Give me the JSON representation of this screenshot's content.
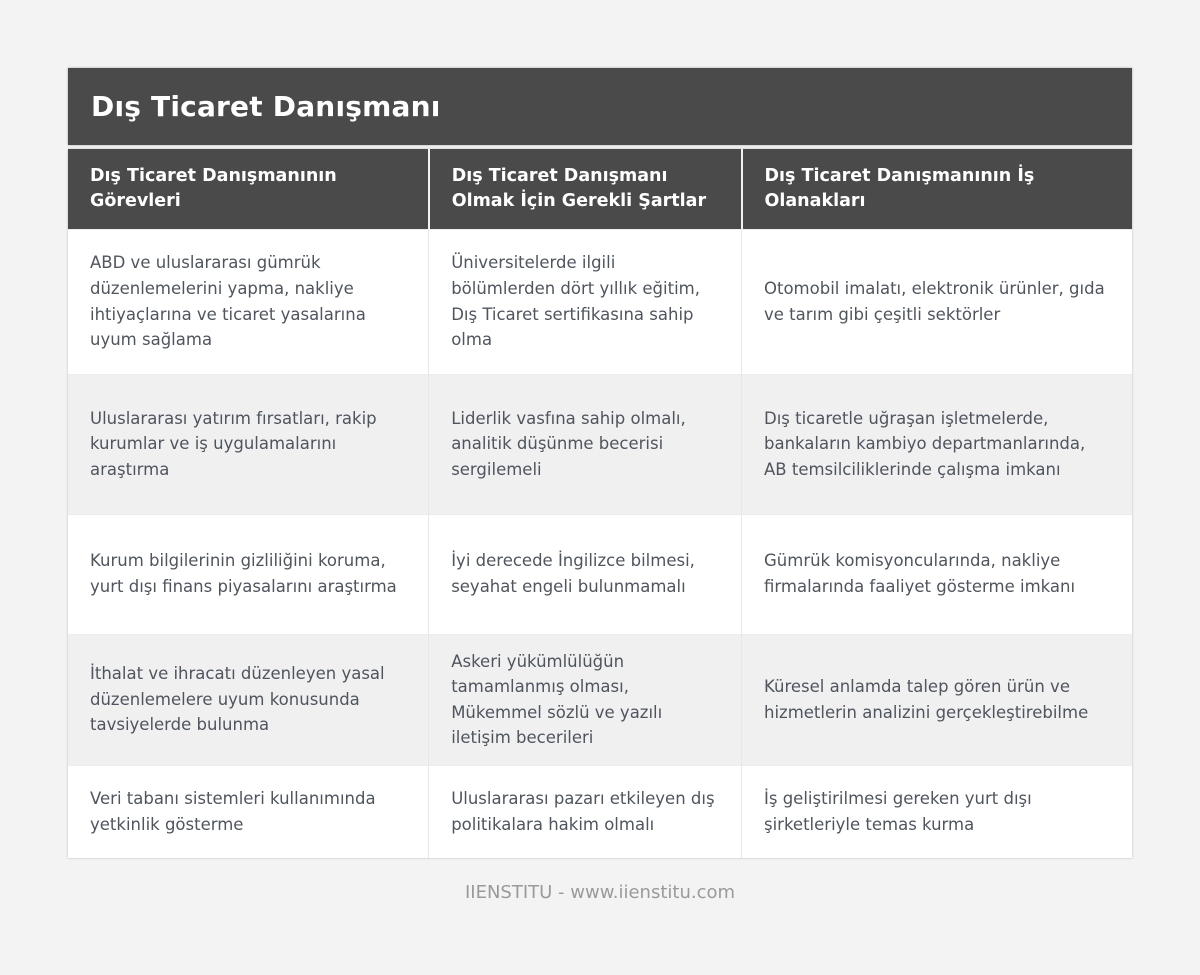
{
  "table": {
    "title": "Dış Ticaret Danışmanı",
    "columns": [
      "Dış Ticaret Danışmanının Görevleri",
      "Dış Ticaret Danışmanı Olmak İçin Gerekli Şartlar",
      "Dış Ticaret Danışmanının İş Olanakları"
    ],
    "rows": [
      [
        "ABD ve uluslararası gümrük düzenlemelerini yapma, nakliye ihtiyaçlarına ve ticaret yasalarına uyum sağlama",
        "Üniversitelerde ilgili bölümlerden dört yıllık eğitim, Dış Ticaret sertifikasına sahip olma",
        "Otomobil imalatı, elektronik ürünler, gıda ve tarım gibi çeşitli sektörler"
      ],
      [
        "Uluslararası yatırım fırsatları, rakip kurumlar ve iş uygulamalarını araştırma",
        "Liderlik vasfına sahip olmalı, analitik düşünme becerisi sergilemeli",
        "Dış ticaretle uğraşan işletmelerde, bankaların kambiyo departmanlarında, AB temsilciliklerinde çalışma imkanı"
      ],
      [
        "Kurum bilgilerinin gizliliğini koruma, yurt dışı finans piyasalarını araştırma",
        "İyi derecede İngilizce bilmesi, seyahat engeli bulunmamalı",
        "Gümrük komisyoncularında, nakliye firmalarında faaliyet gösterme imkanı"
      ],
      [
        "İthalat ve ihracatı düzenleyen yasal düzenlemelere uyum konusunda tavsiyelerde bulunma",
        "Askeri yükümlülüğün tamamlanmış olması, Mükemmel sözlü ve yazılı iletişim becerileri",
        "Küresel anlamda talep gören ürün ve hizmetlerin analizini gerçekleştirebilme"
      ],
      [
        "Veri tabanı sistemleri kullanımında yetkinlik gösterme",
        "Uluslararası pazarı etkileyen dış politikalara hakim olmalı",
        "İş geliştirilmesi gereken yurt dışı şirketleriyle temas kurma"
      ]
    ]
  },
  "footer": {
    "text": "IIENSTITU - www.iienstitu.com"
  },
  "colors": {
    "header_bg": "#4a4a4a",
    "header_text": "#ffffff",
    "body_text": "#4f555e",
    "stripe_bg": "#f0f0f0",
    "page_bg": "#f3f3f3",
    "footer_text": "#9a9a9a"
  }
}
